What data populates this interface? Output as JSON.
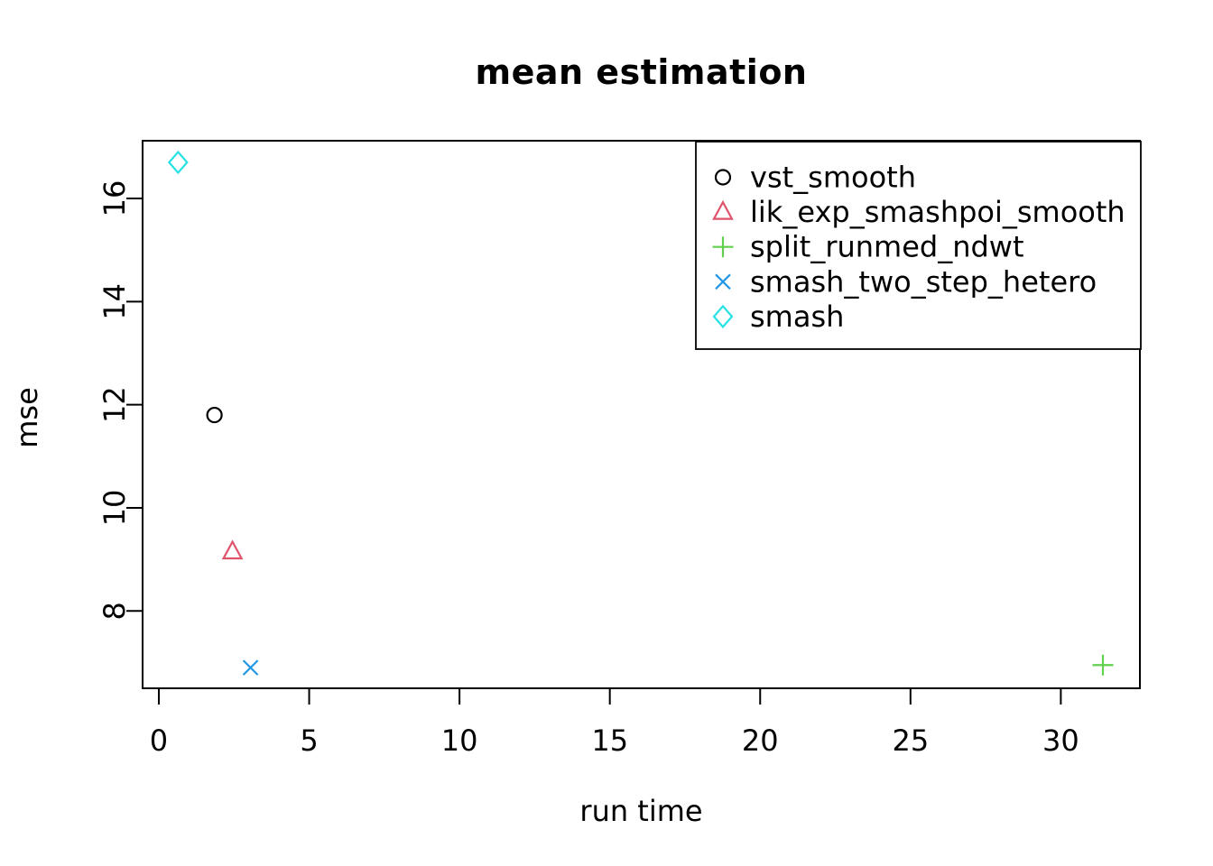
{
  "figure": {
    "title": "mean estimation",
    "xlabel": "run time",
    "ylabel": "mse"
  },
  "chart_data": {
    "type": "scatter",
    "title": "mean estimation",
    "xlabel": "run time",
    "ylabel": "mse",
    "xlim": [
      -0.54,
      32.63
    ],
    "ylim": [
      6.5,
      17.12
    ],
    "x_ticks": [
      0,
      5,
      10,
      15,
      20,
      25,
      30
    ],
    "y_ticks": [
      8,
      10,
      12,
      14,
      16
    ],
    "grid": false,
    "legend_position": "top-right",
    "axis_color": "#000000",
    "series": [
      {
        "name": "vst_smooth",
        "marker": "circle",
        "color": "#000000",
        "points": [
          [
            1.85,
            11.8
          ]
        ]
      },
      {
        "name": "lik_exp_smashpoi_smooth",
        "marker": "triangle",
        "color": "#DF536B",
        "points": [
          [
            2.45,
            9.15
          ]
        ]
      },
      {
        "name": "split_runmed_ndwt",
        "marker": "plus",
        "color": "#61D04F",
        "points": [
          [
            31.4,
            6.95
          ]
        ]
      },
      {
        "name": "smash_two_step_hetero",
        "marker": "x",
        "color": "#2297E6",
        "points": [
          [
            3.05,
            6.9
          ]
        ]
      },
      {
        "name": "smash",
        "marker": "diamond",
        "color": "#28E2E5",
        "points": [
          [
            0.64,
            16.7
          ]
        ]
      }
    ]
  }
}
